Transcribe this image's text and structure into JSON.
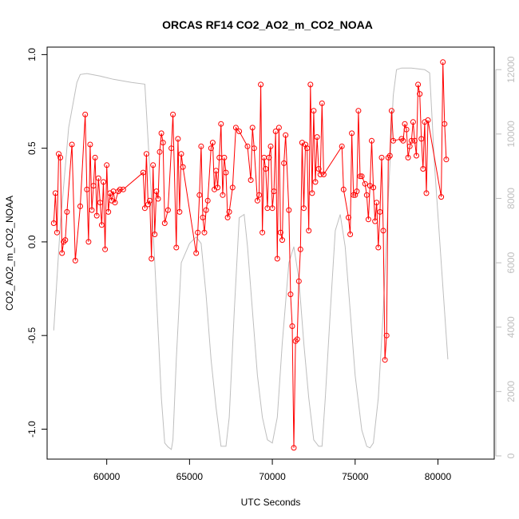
{
  "chart_data": {
    "type": "line",
    "title": "ORCAS RF14 CO2_AO2_m_CO2_NOAA",
    "xlabel": "UTC Seconds",
    "ylabel": "CO2_AO2_m_CO2_NOAA",
    "xlim": [
      56400,
      83400
    ],
    "ylim": [
      -1.16,
      1.04
    ],
    "y2lim": [
      -100,
      12700
    ],
    "x_ticks": [
      60000,
      65000,
      70000,
      75000,
      80000
    ],
    "x_tick_labels": [
      "60000",
      "65000",
      "70000",
      "75000",
      "80000"
    ],
    "y_ticks": [
      -1.0,
      -0.5,
      0.0,
      0.5,
      1.0
    ],
    "y_tick_labels": [
      "-1.0",
      "-0.5",
      "0.0",
      "0.5",
      "1.0"
    ],
    "y2_ticks": [
      0,
      2000,
      4000,
      6000,
      8000,
      10000,
      12000
    ],
    "y2_tick_labels": [
      "0",
      "2000",
      "4000",
      "6000",
      "8000",
      "10000",
      "12000"
    ],
    "colors": {
      "series": "#ff0000",
      "secondary": "#bebebe",
      "axis": "#000000"
    },
    "grid": false,
    "series": [
      {
        "axis": "left",
        "style": "line+points",
        "color": "#ff0000",
        "points": [
          [
            56800,
            0.1
          ],
          [
            56900,
            0.26
          ],
          [
            57000,
            0.05
          ],
          [
            57100,
            0.47
          ],
          [
            57200,
            0.45
          ],
          [
            57300,
            -0.06
          ],
          [
            57400,
            0.0
          ],
          [
            57500,
            0.01
          ],
          [
            57600,
            0.16
          ],
          [
            57900,
            0.52
          ],
          [
            58100,
            -0.1
          ],
          [
            58400,
            0.19
          ],
          [
            58700,
            0.68
          ],
          [
            58800,
            0.28
          ],
          [
            58900,
            0.0
          ],
          [
            59000,
            0.52
          ],
          [
            59100,
            0.17
          ],
          [
            59200,
            0.3
          ],
          [
            59300,
            0.45
          ],
          [
            59400,
            0.14
          ],
          [
            59500,
            0.34
          ],
          [
            59600,
            0.21
          ],
          [
            59700,
            0.09
          ],
          [
            59800,
            0.32
          ],
          [
            59900,
            -0.04
          ],
          [
            60000,
            0.41
          ],
          [
            60100,
            0.16
          ],
          [
            60200,
            0.26
          ],
          [
            60300,
            0.22
          ],
          [
            60400,
            0.27
          ],
          [
            60500,
            0.21
          ],
          [
            60700,
            0.27
          ],
          [
            60800,
            0.28
          ],
          [
            61000,
            0.28
          ],
          [
            62200,
            0.37
          ],
          [
            62300,
            0.18
          ],
          [
            62400,
            0.47
          ],
          [
            62500,
            0.2
          ],
          [
            62600,
            0.22
          ],
          [
            62700,
            -0.09
          ],
          [
            62800,
            0.41
          ],
          [
            62900,
            0.04
          ],
          [
            63000,
            0.27
          ],
          [
            63100,
            0.23
          ],
          [
            63200,
            0.48
          ],
          [
            63300,
            0.58
          ],
          [
            63400,
            0.53
          ],
          [
            63500,
            0.1
          ],
          [
            63700,
            0.17
          ],
          [
            63900,
            0.5
          ],
          [
            64000,
            0.68
          ],
          [
            64200,
            -0.03
          ],
          [
            64300,
            0.55
          ],
          [
            64400,
            0.16
          ],
          [
            64500,
            0.47
          ],
          [
            64600,
            0.4
          ],
          [
            65400,
            -0.06
          ],
          [
            65500,
            0.05
          ],
          [
            65600,
            0.25
          ],
          [
            65700,
            0.51
          ],
          [
            65800,
            0.13
          ],
          [
            65900,
            0.05
          ],
          [
            66000,
            0.17
          ],
          [
            66100,
            0.22
          ],
          [
            66300,
            0.5
          ],
          [
            66400,
            0.53
          ],
          [
            66500,
            0.28
          ],
          [
            66600,
            0.38
          ],
          [
            66700,
            0.29
          ],
          [
            66800,
            0.45
          ],
          [
            66900,
            0.63
          ],
          [
            67000,
            0.25
          ],
          [
            67100,
            0.45
          ],
          [
            67200,
            0.37
          ],
          [
            67300,
            0.13
          ],
          [
            67400,
            0.16
          ],
          [
            67600,
            0.29
          ],
          [
            67800,
            0.61
          ],
          [
            68000,
            0.59
          ],
          [
            68500,
            0.51
          ],
          [
            68700,
            0.33
          ],
          [
            68800,
            0.61
          ],
          [
            68900,
            0.5
          ],
          [
            69100,
            0.22
          ],
          [
            69200,
            0.25
          ],
          [
            69300,
            0.84
          ],
          [
            69400,
            0.05
          ],
          [
            69500,
            0.45
          ],
          [
            69600,
            0.39
          ],
          [
            69700,
            0.18
          ],
          [
            69800,
            0.45
          ],
          [
            69900,
            0.51
          ],
          [
            70000,
            0.18
          ],
          [
            70100,
            0.27
          ],
          [
            70200,
            0.59
          ],
          [
            70300,
            -0.09
          ],
          [
            70400,
            0.61
          ],
          [
            70500,
            0.05
          ],
          [
            70600,
            0.01
          ],
          [
            70700,
            0.42
          ],
          [
            70800,
            0.57
          ],
          [
            71000,
            0.17
          ],
          [
            71100,
            -0.28
          ],
          [
            71200,
            -0.45
          ],
          [
            71300,
            -1.1
          ],
          [
            71400,
            -0.53
          ],
          [
            71500,
            -0.52
          ],
          [
            71600,
            -0.21
          ],
          [
            71700,
            -0.04
          ],
          [
            71800,
            0.53
          ],
          [
            71900,
            0.18
          ],
          [
            72000,
            0.52
          ],
          [
            72100,
            0.5
          ],
          [
            72200,
            0.06
          ],
          [
            72300,
            0.84
          ],
          [
            72400,
            0.26
          ],
          [
            72500,
            0.7
          ],
          [
            72600,
            0.32
          ],
          [
            72700,
            0.56
          ],
          [
            72800,
            0.39
          ],
          [
            72900,
            0.36
          ],
          [
            73000,
            0.74
          ],
          [
            73100,
            0.36
          ],
          [
            74200,
            0.51
          ],
          [
            74300,
            0.28
          ],
          [
            74600,
            0.13
          ],
          [
            74700,
            0.04
          ],
          [
            74800,
            0.58
          ],
          [
            74900,
            0.25
          ],
          [
            75000,
            0.25
          ],
          [
            75100,
            0.27
          ],
          [
            75200,
            0.7
          ],
          [
            75300,
            0.35
          ],
          [
            75400,
            0.35
          ],
          [
            75600,
            0.31
          ],
          [
            75700,
            0.25
          ],
          [
            75800,
            0.12
          ],
          [
            75900,
            0.3
          ],
          [
            76000,
            0.54
          ],
          [
            76100,
            0.29
          ],
          [
            76200,
            0.11
          ],
          [
            76300,
            0.21
          ],
          [
            76400,
            -0.03
          ],
          [
            76500,
            0.16
          ],
          [
            76600,
            0.45
          ],
          [
            76700,
            0.06
          ],
          [
            76800,
            -0.63
          ],
          [
            76900,
            -0.5
          ],
          [
            77000,
            0.45
          ],
          [
            77100,
            0.46
          ],
          [
            77200,
            0.7
          ],
          [
            77300,
            0.54
          ],
          [
            77800,
            0.55
          ],
          [
            77900,
            0.54
          ],
          [
            78000,
            0.63
          ],
          [
            78100,
            0.6
          ],
          [
            78200,
            0.45
          ],
          [
            78300,
            0.51
          ],
          [
            78400,
            0.54
          ],
          [
            78500,
            0.64
          ],
          [
            78600,
            0.54
          ],
          [
            78700,
            0.46
          ],
          [
            78800,
            0.84
          ],
          [
            78900,
            0.79
          ],
          [
            79000,
            0.55
          ],
          [
            79100,
            0.39
          ],
          [
            79200,
            0.64
          ],
          [
            79300,
            0.26
          ],
          [
            79400,
            0.65
          ],
          [
            80200,
            0.24
          ],
          [
            80300,
            0.96
          ],
          [
            80400,
            0.63
          ],
          [
            80500,
            0.44
          ]
        ]
      },
      {
        "axis": "right",
        "style": "line",
        "color": "#bebebe",
        "points": [
          [
            56800,
            3900
          ],
          [
            57200,
            7200
          ],
          [
            57700,
            10200
          ],
          [
            58200,
            11600
          ],
          [
            58400,
            11850
          ],
          [
            58800,
            11880
          ],
          [
            59600,
            11800
          ],
          [
            60400,
            11700
          ],
          [
            61500,
            11600
          ],
          [
            62300,
            11550
          ],
          [
            62700,
            8000
          ],
          [
            63000,
            5000
          ],
          [
            63300,
            1800
          ],
          [
            63500,
            400
          ],
          [
            63700,
            280
          ],
          [
            63900,
            200
          ],
          [
            64000,
            500
          ],
          [
            64200,
            3000
          ],
          [
            64500,
            6000
          ],
          [
            65000,
            6600
          ],
          [
            65400,
            6800
          ],
          [
            65700,
            6600
          ],
          [
            66000,
            5000
          ],
          [
            66300,
            3000
          ],
          [
            66600,
            1500
          ],
          [
            66900,
            300
          ],
          [
            67200,
            300
          ],
          [
            67400,
            1200
          ],
          [
            67700,
            4500
          ],
          [
            68000,
            7400
          ],
          [
            68300,
            7500
          ],
          [
            68500,
            6500
          ],
          [
            68800,
            4500
          ],
          [
            69100,
            2500
          ],
          [
            69400,
            1200
          ],
          [
            69700,
            500
          ],
          [
            70000,
            400
          ],
          [
            70300,
            1200
          ],
          [
            70600,
            3500
          ],
          [
            71000,
            6000
          ],
          [
            71300,
            6500
          ],
          [
            71600,
            5500
          ],
          [
            71900,
            3500
          ],
          [
            72200,
            1800
          ],
          [
            72500,
            500
          ],
          [
            72800,
            300
          ],
          [
            73000,
            300
          ],
          [
            73200,
            1800
          ],
          [
            73500,
            4500
          ],
          [
            73800,
            7000
          ],
          [
            74100,
            7500
          ],
          [
            74400,
            6500
          ],
          [
            74700,
            4500
          ],
          [
            75000,
            2500
          ],
          [
            75400,
            800
          ],
          [
            75700,
            300
          ],
          [
            75900,
            250
          ],
          [
            76100,
            400
          ],
          [
            76400,
            1800
          ],
          [
            76700,
            4500
          ],
          [
            77000,
            8000
          ],
          [
            77300,
            11200
          ],
          [
            77500,
            12000
          ],
          [
            77800,
            12050
          ],
          [
            78400,
            12050
          ],
          [
            79200,
            12000
          ],
          [
            79500,
            11900
          ],
          [
            79800,
            9000
          ],
          [
            80200,
            6000
          ],
          [
            80600,
            3000
          ]
        ]
      }
    ]
  }
}
